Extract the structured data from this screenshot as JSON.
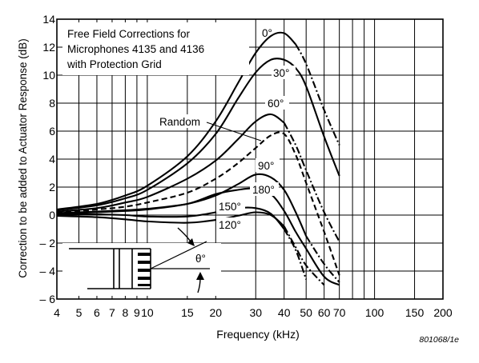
{
  "chart_data": {
    "type": "line",
    "title_lines": [
      "Free Field Corrections for",
      "Microphones 4135 and 4136",
      "with Protection Grid"
    ],
    "xlabel": "Frequency (kHz)",
    "ylabel": "Correction to be added to Actuator Response (dB)",
    "x_scale": "log",
    "xlim": [
      4,
      200
    ],
    "ylim": [
      -6,
      14
    ],
    "x_ticks": [
      {
        "v": 4,
        "t": "4"
      },
      {
        "v": 5,
        "t": "5"
      },
      {
        "v": 6,
        "t": "6"
      },
      {
        "v": 7,
        "t": "7"
      },
      {
        "v": 8,
        "t": "8"
      },
      {
        "v": 9,
        "t": "9"
      },
      {
        "v": 10,
        "t": "10"
      },
      {
        "v": 15,
        "t": "15"
      },
      {
        "v": 20,
        "t": "20"
      },
      {
        "v": 30,
        "t": "30"
      },
      {
        "v": 40,
        "t": "40"
      },
      {
        "v": 50,
        "t": "50"
      },
      {
        "v": 60,
        "t": "60"
      },
      {
        "v": 70,
        "t": "70"
      },
      {
        "v": 100,
        "t": "100"
      },
      {
        "v": 150,
        "t": "150"
      },
      {
        "v": 200,
        "t": "200"
      }
    ],
    "x_grid": [
      4,
      5,
      6,
      7,
      8,
      9,
      10,
      15,
      20,
      30,
      40,
      50,
      60,
      70,
      80,
      90,
      100,
      150,
      200
    ],
    "y_ticks": [
      -6,
      -4,
      -2,
      0,
      2,
      4,
      6,
      8,
      10,
      12,
      14
    ],
    "y_tick_labels": [
      "– 6",
      "– 4",
      "– 2",
      "0",
      "2",
      "4",
      "6",
      "8",
      "10",
      "12",
      "14"
    ],
    "grid": true,
    "series": [
      {
        "name": "0°",
        "style": "solid",
        "x": [
          4,
          6,
          8,
          10,
          15,
          20,
          25,
          30,
          35,
          40,
          45
        ],
        "y": [
          0.4,
          0.8,
          1.4,
          2.1,
          4.2,
          6.7,
          9.4,
          11.6,
          12.8,
          13.0,
          12.2
        ],
        "tail": {
          "style": "dashdot",
          "x": [
            45,
            50,
            60,
            70
          ],
          "y": [
            12.2,
            10.8,
            7.5,
            5.0
          ]
        }
      },
      {
        "name": "30°",
        "style": "solid",
        "x": [
          4,
          6,
          8,
          10,
          15,
          20,
          25,
          30,
          35,
          40,
          45,
          50,
          60,
          70
        ],
        "y": [
          0.35,
          0.7,
          1.2,
          1.8,
          3.7,
          5.8,
          8.3,
          10.2,
          11.1,
          11.1,
          10.5,
          9.2,
          5.6,
          2.8
        ]
      },
      {
        "name": "60°",
        "style": "solid",
        "x": [
          4,
          6,
          8,
          10,
          15,
          20,
          25,
          30,
          35,
          40
        ],
        "y": [
          0.25,
          0.5,
          0.9,
          1.3,
          2.6,
          3.9,
          5.4,
          6.7,
          7.2,
          6.6
        ],
        "tail": {
          "style": "dashdot",
          "x": [
            40,
            45,
            50,
            60,
            70
          ],
          "y": [
            6.6,
            5.0,
            3.2,
            0.2,
            -1.9
          ]
        }
      },
      {
        "name": "Random",
        "style": "dashed",
        "x": [
          4,
          6,
          8,
          10,
          15,
          20,
          25,
          30,
          35,
          40,
          45,
          50,
          60,
          70
        ],
        "y": [
          0.2,
          0.4,
          0.6,
          0.9,
          1.6,
          2.6,
          3.7,
          4.8,
          5.7,
          5.8,
          4.3,
          2.3,
          -1.2,
          -4.3
        ]
      },
      {
        "name": "90°",
        "style": "solid",
        "x": [
          4,
          6,
          8,
          10,
          15,
          20,
          25,
          30,
          35,
          40,
          45,
          50
        ],
        "y": [
          0.15,
          0.25,
          0.35,
          0.45,
          0.8,
          1.4,
          2.2,
          2.9,
          2.7,
          1.8,
          0.2,
          -1.5
        ],
        "tail": {
          "style": "dashdot",
          "x": [
            50,
            60,
            70
          ],
          "y": [
            -1.5,
            -3.5,
            -4.8
          ]
        }
      },
      {
        "name": "180°",
        "style": "solid",
        "x": [
          4,
          6,
          8,
          10,
          15,
          20,
          25,
          30,
          35,
          40,
          45,
          50,
          60,
          70
        ],
        "y": [
          0.1,
          0.2,
          0.3,
          0.4,
          0.8,
          1.5,
          1.8,
          1.9,
          1.5,
          0.3,
          -1.2,
          -2.4,
          -4.4,
          -5.0
        ]
      },
      {
        "name": "150°",
        "style": "solid",
        "x": [
          4,
          6,
          8,
          10,
          15,
          20,
          25,
          30,
          35,
          40
        ],
        "y": [
          0.05,
          0.05,
          0,
          -0.1,
          -0.1,
          0.2,
          0.5,
          0.5,
          0.1,
          -1.0
        ],
        "tail": {
          "style": "dashdot",
          "x": [
            40,
            45,
            50
          ],
          "y": [
            -1.0,
            -2.5,
            -4.6
          ]
        }
      },
      {
        "name": "120°",
        "style": "solid",
        "x": [
          4,
          6,
          8,
          10,
          15,
          20,
          25,
          30,
          35,
          40
        ],
        "y": [
          -0.05,
          -0.15,
          -0.3,
          -0.45,
          -0.55,
          -0.35,
          -0.05,
          0.2,
          0.0,
          -0.8
        ],
        "tail": {
          "style": "dashdot",
          "x": [
            40,
            45,
            50,
            60
          ],
          "y": [
            -0.8,
            -2.3,
            -3.6,
            -5.0
          ]
        }
      }
    ],
    "annotations": {
      "label_0": "0°",
      "label_30": "30°",
      "label_60": "60°",
      "label_random": "Random",
      "label_90": "90°",
      "label_180": "180°",
      "label_150": "150°",
      "label_120": "120°",
      "theta": "θ°"
    },
    "figure_id": "801068/1e"
  }
}
